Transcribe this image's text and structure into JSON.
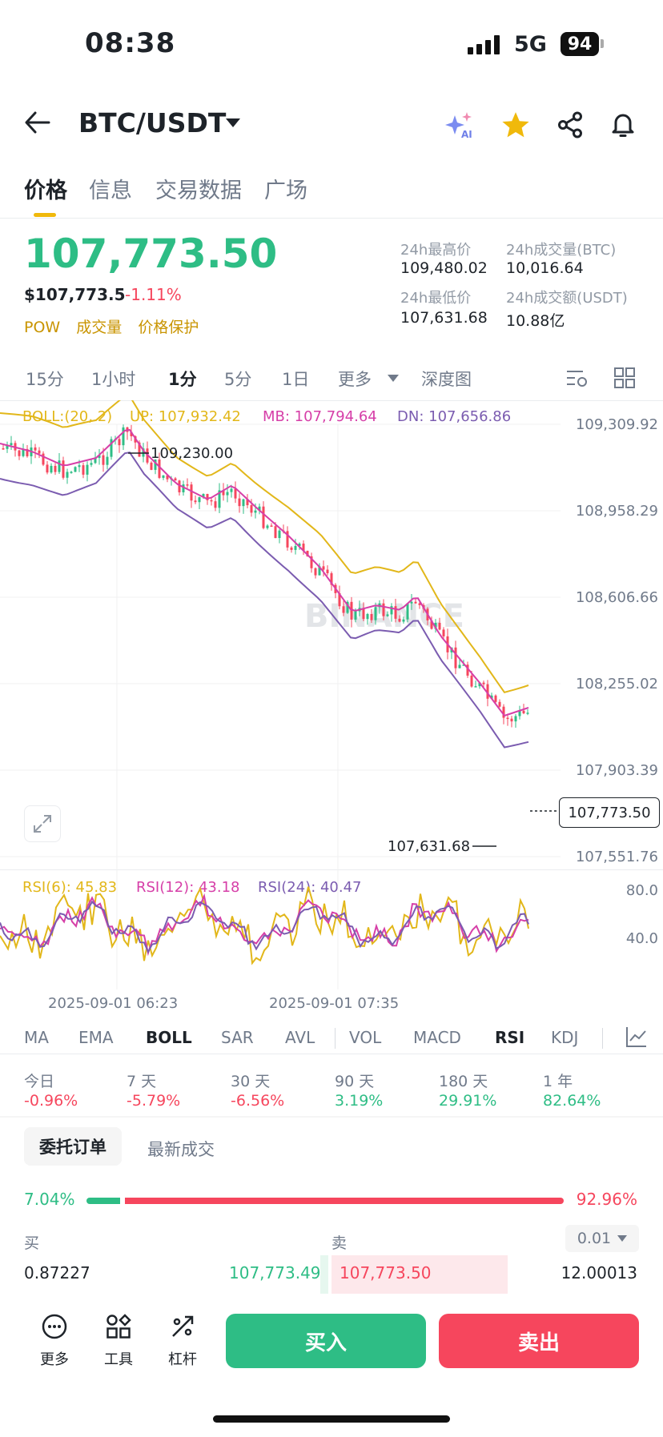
{
  "status": {
    "time": "08:38",
    "network": "5G",
    "battery": "94"
  },
  "header": {
    "pair": "BTC/USDT",
    "icons": [
      "back-arrow-icon",
      "ai-sparkle-icon",
      "star-icon",
      "share-icon",
      "bell-icon"
    ]
  },
  "tabs": [
    "价格",
    "信息",
    "交易数据",
    "广场"
  ],
  "price": {
    "last": "107,773.50",
    "usd": "$107,773.5",
    "change": "-1.11%",
    "tags": [
      "POW",
      "成交量",
      "价格保护"
    ],
    "stats": {
      "high_label": "24h最高价",
      "high": "109,480.02",
      "vol_btc_label": "24h成交量(BTC)",
      "vol_btc": "10,016.64",
      "low_label": "24h最低价",
      "low": "107,631.68",
      "vol_usdt_label": "24h成交额(USDT)",
      "vol_usdt": "10.88亿"
    }
  },
  "timeframes": [
    "15分",
    "1小时",
    "1分",
    "5分",
    "1日",
    "更多",
    "深度图"
  ],
  "boll": {
    "label": "BOLL:(20, 2)",
    "up": "UP: 107,932.42",
    "mb": "MB: 107,794.64",
    "dn": "DN: 107,656.86"
  },
  "price_axis": [
    "109,309.92",
    "108,958.29",
    "108,606.66",
    "108,255.02",
    "107,903.39",
    "107,551.76"
  ],
  "chart_annotations": {
    "high": "109,230.00",
    "low": "107,631.68",
    "current": "107,773.50"
  },
  "rsi": {
    "r6": "RSI(6): 45.83",
    "r12": "RSI(12): 43.18",
    "r24": "RSI(24): 40.47",
    "axis": [
      "80.0",
      "40.0"
    ]
  },
  "time_axis": [
    "2025-09-01 06:23",
    "2025-09-01 07:35"
  ],
  "watermark": "BINANCE",
  "indicator_tabs": [
    "MA",
    "EMA",
    "BOLL",
    "SAR",
    "AVL",
    "VOL",
    "MACD",
    "RSI",
    "KDJ"
  ],
  "performance": [
    {
      "label": "今日",
      "value": "-0.96%"
    },
    {
      "label": "7 天",
      "value": "-5.79%"
    },
    {
      "label": "30 天",
      "value": "-6.56%"
    },
    {
      "label": "90 天",
      "value": "3.19%"
    },
    {
      "label": "180 天",
      "value": "29.91%"
    },
    {
      "label": "1 年",
      "value": "82.64%"
    }
  ],
  "orderbook": {
    "tab_active": "委托订单",
    "tab_other": "最新成交",
    "buy_ratio": "7.04%",
    "sell_ratio": "92.96%",
    "buy_fraction": 0.0704,
    "buy_header": "买",
    "sell_header": "卖",
    "precision": "0.01",
    "row": {
      "bid_qty": "0.87227",
      "bid_price": "107,773.49",
      "ask_price": "107,773.50",
      "ask_qty": "12.00013"
    }
  },
  "bottom": {
    "more": "更多",
    "tools": "工具",
    "leverage": "杠杆",
    "buy": "买入",
    "sell": "卖出"
  },
  "colors": {
    "up": "#2ebd85",
    "down": "#f6465d",
    "boll_up": "#e2b71a",
    "boll_mb": "#d63fa8",
    "boll_dn": "#7b5cb0",
    "accent": "#f0b90b"
  }
}
